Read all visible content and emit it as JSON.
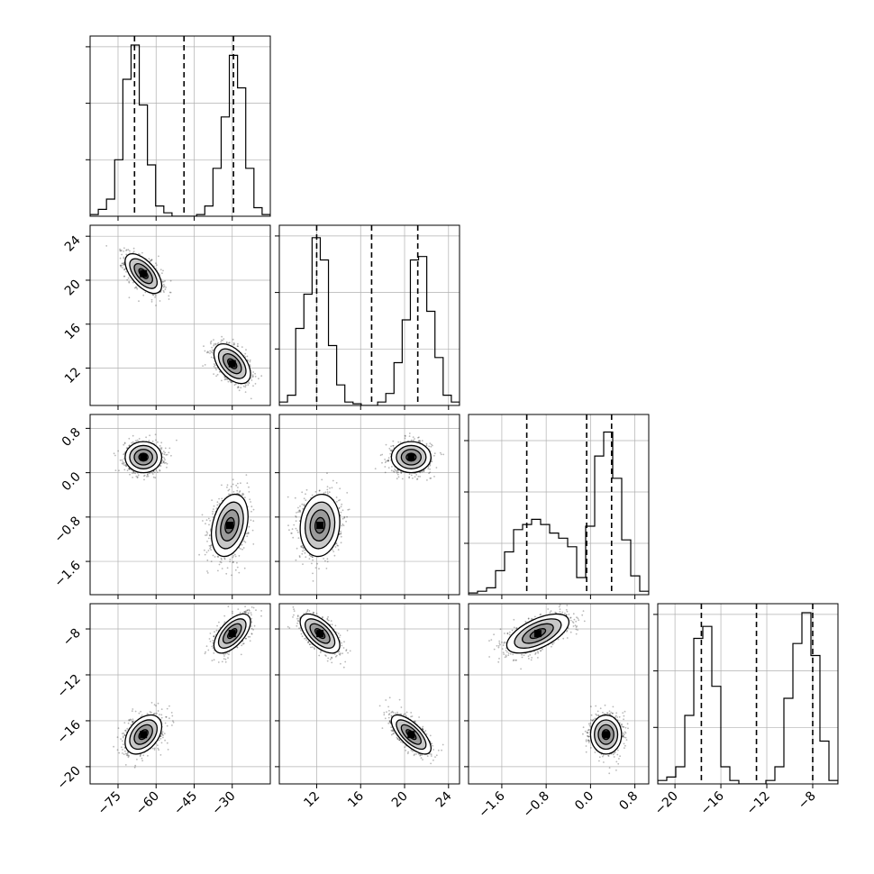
{
  "chart_data": {
    "type": "corner",
    "title": "",
    "colors": {
      "hist": "#000000",
      "points": "#000000",
      "contour_fill": [
        "#c8c8c8",
        "#9a9a9a",
        "#6e6e6e",
        "#3c3c3c"
      ],
      "grid": "#b0b0b0"
    },
    "grid": true,
    "parameters": [
      {
        "range": [
          -86,
          -15
        ],
        "ticks": [
          -75,
          -60,
          -45,
          -30
        ],
        "tick_labels": [
          "−75",
          "−60",
          "−45",
          "−30"
        ],
        "quantile_lines": [
          -68.5,
          -49,
          -29.5
        ],
        "hist_tick_levels": [
          0.33,
          0.66,
          0.99
        ],
        "hist": [
          0.01,
          0.04,
          0.1,
          0.33,
          0.8,
          1.0,
          0.65,
          0.3,
          0.06,
          0.02,
          0.0,
          0.0,
          0.0,
          0.01,
          0.06,
          0.28,
          0.58,
          0.94,
          0.75,
          0.28,
          0.05,
          0.01
        ],
        "modes": [
          {
            "mean": -65,
            "sd": 3.5,
            "weight": 0.5
          },
          {
            "mean": -31,
            "sd": 3.5,
            "weight": 0.5
          }
        ]
      },
      {
        "range": [
          8.6,
          25.0
        ],
        "ticks": [
          12,
          16,
          20,
          24
        ],
        "tick_labels": [
          "12",
          "16",
          "20",
          "24"
        ],
        "quantile_lines": [
          12.0,
          17.0,
          21.2
        ],
        "hist_tick_levels": [
          0.33,
          0.66,
          0.99
        ],
        "hist": [
          0.02,
          0.06,
          0.45,
          0.65,
          0.98,
          0.85,
          0.35,
          0.12,
          0.02,
          0.01,
          0.0,
          0.0,
          0.02,
          0.07,
          0.25,
          0.5,
          0.85,
          0.87,
          0.55,
          0.28,
          0.06,
          0.02
        ],
        "modes": [
          {
            "mean": 12.3,
            "sd": 0.9,
            "weight": 0.5
          },
          {
            "mean": 20.6,
            "sd": 0.9,
            "weight": 0.5
          }
        ]
      },
      {
        "range": [
          -2.2,
          1.05
        ],
        "ticks": [
          -1.6,
          -0.8,
          0.0,
          0.8
        ],
        "tick_labels": [
          "−1.6",
          "−0.8",
          "0.0",
          "0.8"
        ],
        "quantile_lines": [
          -1.15,
          -0.07,
          0.38
        ],
        "hist_tick_levels": [
          0.3,
          0.6,
          0.9
        ],
        "hist": [
          0.01,
          0.02,
          0.04,
          0.14,
          0.25,
          0.38,
          0.41,
          0.44,
          0.41,
          0.36,
          0.33,
          0.28,
          0.1,
          0.4,
          0.81,
          0.95,
          0.68,
          0.32,
          0.11,
          0.02
        ],
        "modes": [
          {
            "mean": -0.95,
            "sd": 0.28,
            "weight": 0.5
          },
          {
            "mean": 0.28,
            "sd": 0.14,
            "weight": 0.5
          }
        ]
      },
      {
        "range": [
          -21.5,
          -5.8
        ],
        "ticks": [
          -20,
          -16,
          -12,
          -8
        ],
        "tick_labels": [
          "−20",
          "−16",
          "−12",
          "−8"
        ],
        "quantile_lines": [
          -17.7,
          -12.9,
          -8.0
        ],
        "hist_tick_levels": [
          0.33,
          0.66,
          0.99
        ],
        "hist": [
          0.02,
          0.04,
          0.1,
          0.4,
          0.85,
          0.92,
          0.57,
          0.1,
          0.02,
          0.0,
          0.0,
          0.0,
          0.02,
          0.1,
          0.5,
          0.82,
          1.0,
          0.75,
          0.25,
          0.02
        ],
        "modes": [
          {
            "mean": -17.2,
            "sd": 0.85,
            "weight": 0.5
          },
          {
            "mean": -8.4,
            "sd": 0.85,
            "weight": 0.5
          }
        ]
      }
    ],
    "joint": [
      {
        "row": 1,
        "col": 0,
        "clusters": [
          {
            "center": [
              -65,
              20.6
            ],
            "sd": [
              3.6,
              0.9
            ],
            "corr": -0.6
          },
          {
            "center": [
              -30,
              12.4
            ],
            "sd": [
              3.6,
              0.9
            ],
            "corr": -0.5
          }
        ]
      },
      {
        "row": 2,
        "col": 0,
        "clusters": [
          {
            "center": [
              -65,
              0.28
            ],
            "sd": [
              3.6,
              0.14
            ],
            "corr": 0.0
          },
          {
            "center": [
              -31,
              -0.95
            ],
            "sd": [
              3.6,
              0.28
            ],
            "corr": 0.3
          }
        ]
      },
      {
        "row": 2,
        "col": 1,
        "clusters": [
          {
            "center": [
              20.6,
              0.28
            ],
            "sd": [
              0.9,
              0.14
            ],
            "corr": 0.0
          },
          {
            "center": [
              12.3,
              -0.95
            ],
            "sd": [
              0.9,
              0.28
            ],
            "corr": 0.1
          }
        ]
      },
      {
        "row": 3,
        "col": 0,
        "clusters": [
          {
            "center": [
              -30,
              -8.4
            ],
            "sd": [
              3.6,
              0.85
            ],
            "corr": 0.6
          },
          {
            "center": [
              -65,
              -17.2
            ],
            "sd": [
              3.6,
              0.85
            ],
            "corr": 0.4
          }
        ]
      },
      {
        "row": 3,
        "col": 1,
        "clusters": [
          {
            "center": [
              12.3,
              -8.4
            ],
            "sd": [
              0.9,
              0.85
            ],
            "corr": -0.6
          },
          {
            "center": [
              20.6,
              -17.2
            ],
            "sd": [
              0.9,
              0.85
            ],
            "corr": -0.7
          }
        ]
      },
      {
        "row": 3,
        "col": 2,
        "clusters": [
          {
            "center": [
              -0.95,
              -8.4
            ],
            "sd": [
              0.28,
              0.85
            ],
            "corr": 0.6
          },
          {
            "center": [
              0.28,
              -17.2
            ],
            "sd": [
              0.14,
              0.85
            ],
            "corr": 0.0
          }
        ]
      }
    ],
    "contour_levels_sigma": [
      0.5,
      1.0,
      1.5,
      2.0
    ]
  }
}
